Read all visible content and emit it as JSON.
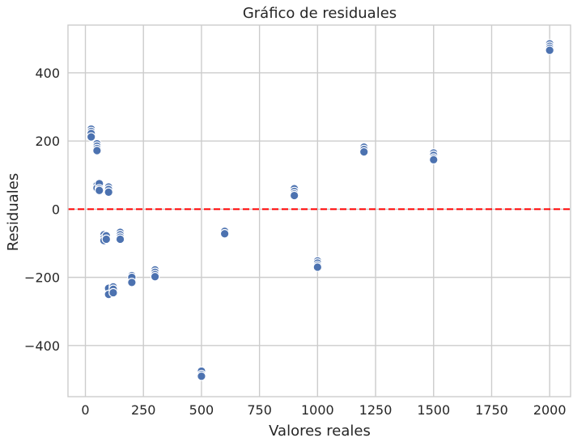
{
  "chart_data": {
    "type": "scatter",
    "title": "Gráfico de residuales",
    "xlabel": "Valores reales",
    "ylabel": "Residuales",
    "xlim": [
      -75,
      2090
    ],
    "ylim": [
      -550,
      540
    ],
    "xticks": [
      0,
      250,
      500,
      750,
      1000,
      1250,
      1500,
      1750,
      2000
    ],
    "yticks": [
      -400,
      -200,
      0,
      200,
      400
    ],
    "xtick_labels": [
      "0",
      "250",
      "500",
      "750",
      "1000",
      "1250",
      "1500",
      "1750",
      "2000"
    ],
    "ytick_labels": [
      "−400",
      "−200",
      "0",
      "200",
      "400"
    ],
    "grid": true,
    "reference_line": {
      "y": 0,
      "color": "#ff0000",
      "style": "dashed"
    },
    "point_color": "#4c72b0",
    "points": [
      {
        "x": 25,
        "y": 235
      },
      {
        "x": 25,
        "y": 228
      },
      {
        "x": 25,
        "y": 222
      },
      {
        "x": 25,
        "y": 212
      },
      {
        "x": 50,
        "y": 192
      },
      {
        "x": 50,
        "y": 185
      },
      {
        "x": 50,
        "y": 178
      },
      {
        "x": 50,
        "y": 172
      },
      {
        "x": 50,
        "y": 70
      },
      {
        "x": 50,
        "y": 62
      },
      {
        "x": 60,
        "y": 75
      },
      {
        "x": 60,
        "y": 60
      },
      {
        "x": 60,
        "y": 55
      },
      {
        "x": 80,
        "y": -75
      },
      {
        "x": 80,
        "y": -85
      },
      {
        "x": 80,
        "y": -92
      },
      {
        "x": 90,
        "y": -78
      },
      {
        "x": 90,
        "y": -88
      },
      {
        "x": 100,
        "y": 65
      },
      {
        "x": 100,
        "y": 58
      },
      {
        "x": 100,
        "y": 50
      },
      {
        "x": 100,
        "y": -232
      },
      {
        "x": 100,
        "y": -250
      },
      {
        "x": 120,
        "y": -228
      },
      {
        "x": 120,
        "y": -235
      },
      {
        "x": 120,
        "y": -245
      },
      {
        "x": 150,
        "y": -68
      },
      {
        "x": 150,
        "y": -75
      },
      {
        "x": 150,
        "y": -82
      },
      {
        "x": 150,
        "y": -88
      },
      {
        "x": 200,
        "y": -195
      },
      {
        "x": 200,
        "y": -200
      },
      {
        "x": 200,
        "y": -215
      },
      {
        "x": 300,
        "y": -178
      },
      {
        "x": 300,
        "y": -185
      },
      {
        "x": 300,
        "y": -192
      },
      {
        "x": 300,
        "y": -198
      },
      {
        "x": 500,
        "y": -475
      },
      {
        "x": 500,
        "y": -485
      },
      {
        "x": 500,
        "y": -490
      },
      {
        "x": 600,
        "y": -65
      },
      {
        "x": 600,
        "y": -72
      },
      {
        "x": 900,
        "y": 60
      },
      {
        "x": 900,
        "y": 52
      },
      {
        "x": 900,
        "y": 45
      },
      {
        "x": 900,
        "y": 40
      },
      {
        "x": 1000,
        "y": -152
      },
      {
        "x": 1000,
        "y": -158
      },
      {
        "x": 1000,
        "y": -165
      },
      {
        "x": 1000,
        "y": -170
      },
      {
        "x": 1200,
        "y": 182
      },
      {
        "x": 1200,
        "y": 175
      },
      {
        "x": 1200,
        "y": 168
      },
      {
        "x": 1500,
        "y": 165
      },
      {
        "x": 1500,
        "y": 158
      },
      {
        "x": 1500,
        "y": 150
      },
      {
        "x": 1500,
        "y": 145
      },
      {
        "x": 2000,
        "y": 485
      },
      {
        "x": 2000,
        "y": 478
      },
      {
        "x": 2000,
        "y": 472
      },
      {
        "x": 2000,
        "y": 466
      }
    ]
  }
}
